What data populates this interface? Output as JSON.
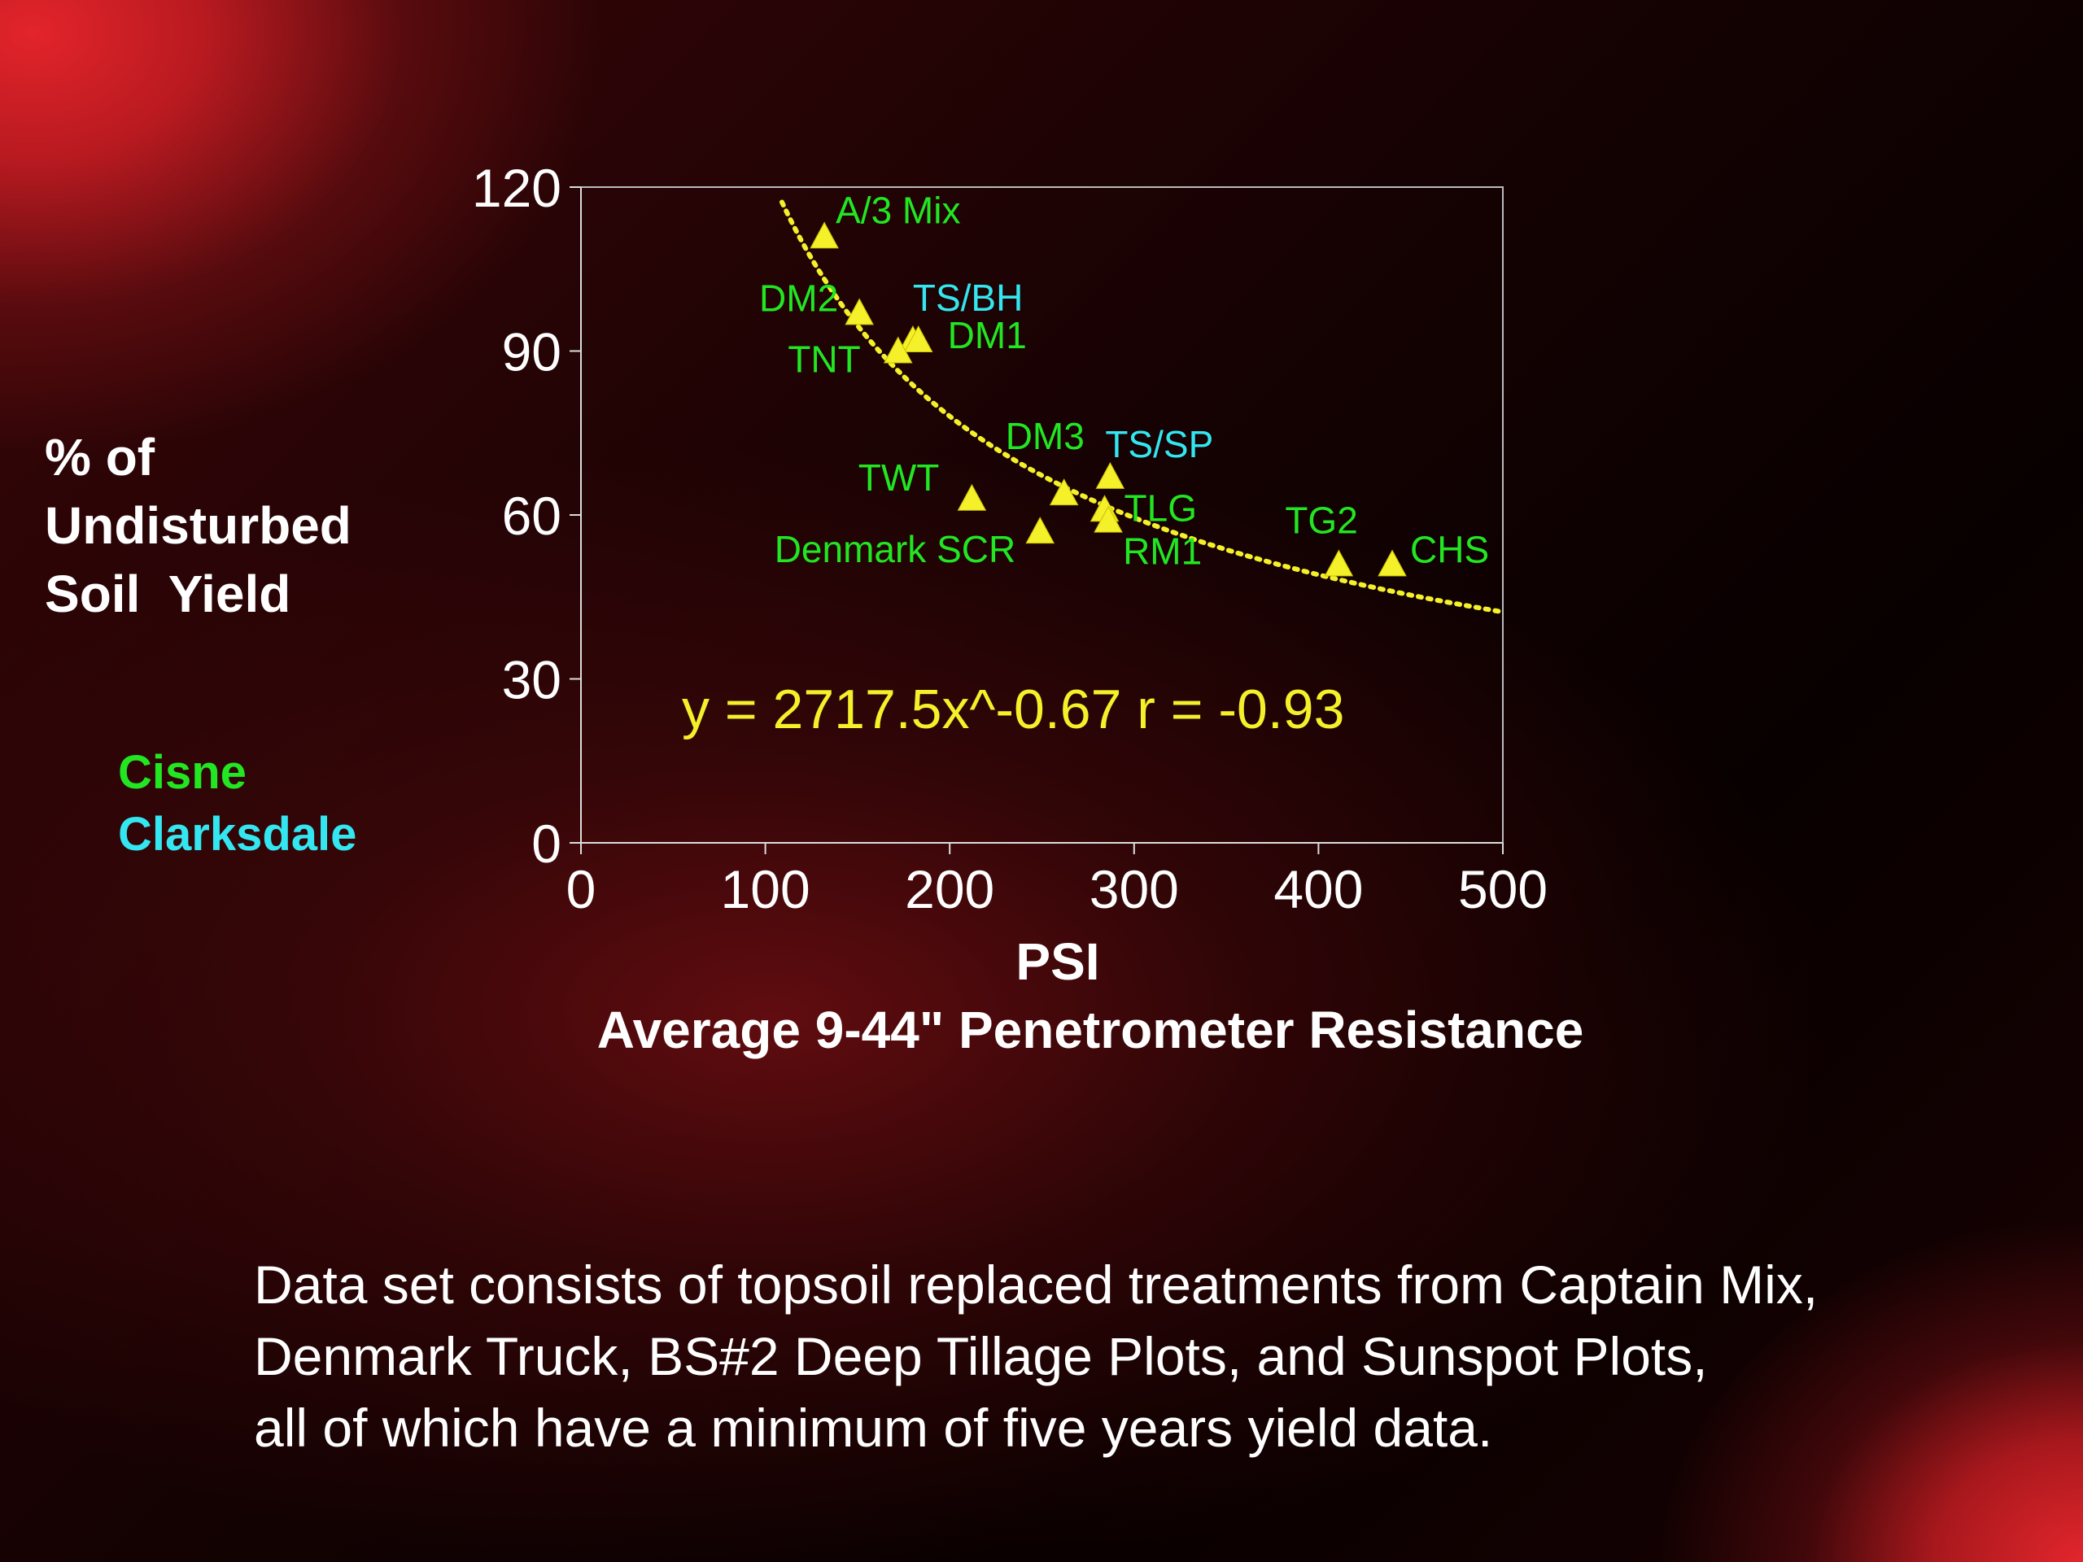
{
  "chart_data": {
    "type": "scatter",
    "ylabel_lines": [
      "% of",
      "Undisturbed",
      "Soil  Yield"
    ],
    "xlabel_lines": [
      "PSI",
      "Average 9-44\" Penetrometer Resistance"
    ],
    "xlim": [
      0,
      500
    ],
    "ylim": [
      0,
      120
    ],
    "x_ticks": [
      "0",
      "100",
      "200",
      "300",
      "400",
      "500"
    ],
    "y_ticks": [
      "0",
      "30",
      "60",
      "90",
      "120"
    ],
    "legend": [
      {
        "name": "Cisne",
        "color": "#22e622"
      },
      {
        "name": "Clarksdale",
        "color": "#33e6f0"
      }
    ],
    "points": [
      {
        "label": "A/3 Mix",
        "x": 132,
        "y": 111,
        "group": "Cisne"
      },
      {
        "label": "DM2",
        "x": 151,
        "y": 97,
        "group": "Cisne"
      },
      {
        "label": "TS/BH",
        "x": 180,
        "y": 92,
        "group": "Clarksdale"
      },
      {
        "label": "DM1",
        "x": 183,
        "y": 92,
        "group": "Cisne"
      },
      {
        "label": "TNT",
        "x": 172,
        "y": 90,
        "group": "Cisne"
      },
      {
        "label": "TWT",
        "x": 212,
        "y": 63,
        "group": "Cisne"
      },
      {
        "label": "DM3",
        "x": 262,
        "y": 64,
        "group": "Cisne"
      },
      {
        "label": "TS/SP",
        "x": 287,
        "y": 67,
        "group": "Clarksdale"
      },
      {
        "label": "TLG",
        "x": 284,
        "y": 61,
        "group": "Cisne"
      },
      {
        "label": "RM1",
        "x": 286,
        "y": 59,
        "group": "Cisne"
      },
      {
        "label": "Denmark SCR",
        "x": 249,
        "y": 57,
        "group": "Cisne"
      },
      {
        "label": "TG2",
        "x": 411,
        "y": 51,
        "group": "Cisne"
      },
      {
        "label": "CHS",
        "x": 440,
        "y": 51,
        "group": "Cisne"
      }
    ],
    "trendline": {
      "type": "power",
      "a": 2717.5,
      "b": -0.67,
      "x_range": [
        109,
        500
      ],
      "equation": "y = 2717.5x^-0.67  r = -0.93",
      "color": "#f4f02a",
      "style": "dotted"
    },
    "marker": "triangle",
    "marker_color": "#f4f02a"
  },
  "caption_lines": [
    "Data set consists of topsoil replaced treatments from Captain Mix,",
    "Denmark Truck, BS#2 Deep Tillage Plots, and Sunspot Plots,",
    "all of which have a minimum of five years yield data."
  ]
}
